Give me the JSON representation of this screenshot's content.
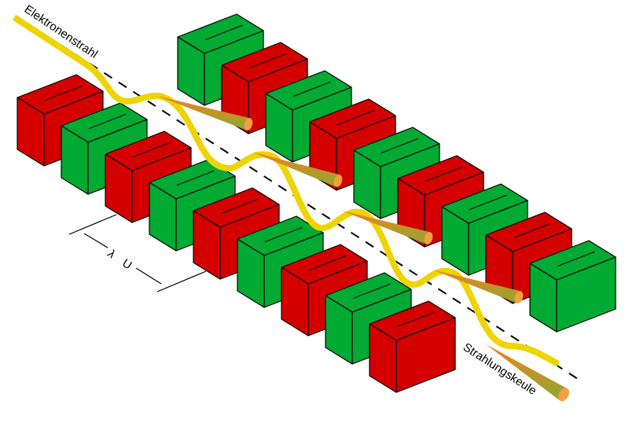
{
  "labels": {
    "electron_beam": "Elektronenstrahl",
    "radiation_lobe": "Strahlungskeule",
    "period_symbol": "λ",
    "period_subscript": "U"
  },
  "colors": {
    "magnet_red": "#d40000",
    "magnet_green": "#00aa33",
    "beam_yellow": "#eed400",
    "cone_orange": "#f5a040",
    "cone_green": "#88aa33",
    "outline": "#000000"
  },
  "rows": {
    "back": [
      "green",
      "red",
      "green",
      "red",
      "green",
      "red",
      "green",
      "red",
      "green"
    ],
    "front": [
      "red",
      "green",
      "red",
      "green",
      "red",
      "green",
      "red",
      "green",
      "red"
    ]
  }
}
